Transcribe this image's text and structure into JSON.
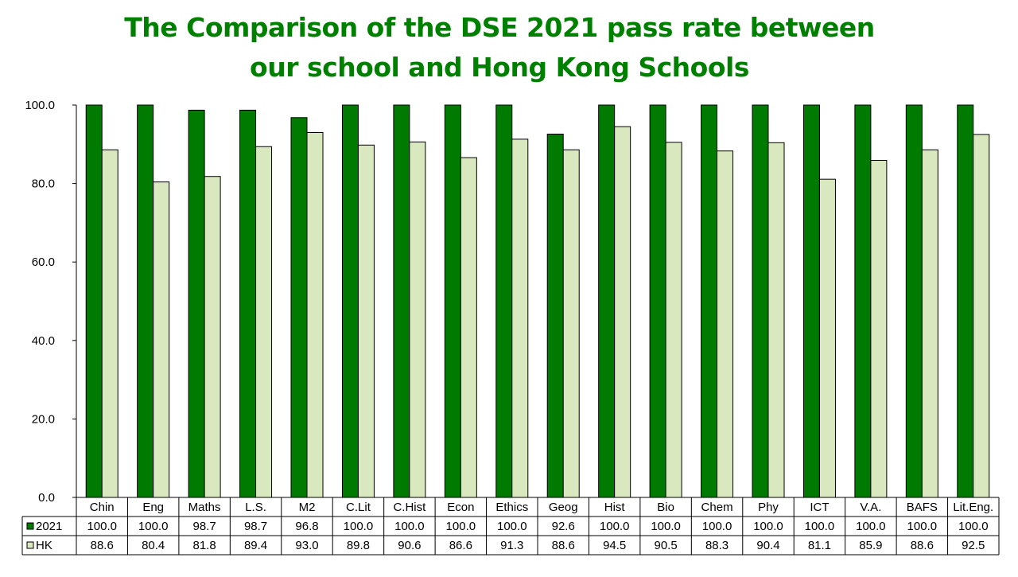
{
  "title_line1": "The Comparison of the DSE 2021 pass rate between",
  "title_line2": "our school and Hong Kong Schools",
  "colors": {
    "title": "#008000",
    "series_2021": "#007a00",
    "series_hk": "#d9e8bf"
  },
  "chart_data": {
    "type": "bar",
    "title": "The Comparison of the DSE 2021 pass rate between our school and Hong Kong Schools",
    "categories": [
      "Chin",
      "Eng",
      "Maths",
      "L.S.",
      "M2",
      "C.Lit",
      "C.Hist",
      "Econ",
      "Ethics",
      "Geog",
      "Hist",
      "Bio",
      "Chem",
      "Phy",
      "ICT",
      "V.A.",
      "BAFS",
      "Lit.Eng."
    ],
    "series": [
      {
        "name": "2021",
        "values": [
          100.0,
          100.0,
          98.7,
          98.7,
          96.8,
          100.0,
          100.0,
          100.0,
          100.0,
          92.6,
          100.0,
          100.0,
          100.0,
          100.0,
          100.0,
          100.0,
          100.0,
          100.0
        ]
      },
      {
        "name": "HK",
        "values": [
          88.6,
          80.4,
          81.8,
          89.4,
          93.0,
          89.8,
          90.6,
          86.6,
          91.3,
          88.6,
          94.5,
          90.5,
          88.3,
          90.4,
          81.1,
          85.9,
          88.6,
          92.5
        ]
      }
    ],
    "ylim": [
      0,
      100
    ],
    "yticks": [
      "0.0",
      "20.0",
      "40.0",
      "60.0",
      "80.0",
      "100.0"
    ],
    "xlabel": "",
    "ylabel": "",
    "grid": false,
    "legend": "data-table-left"
  }
}
